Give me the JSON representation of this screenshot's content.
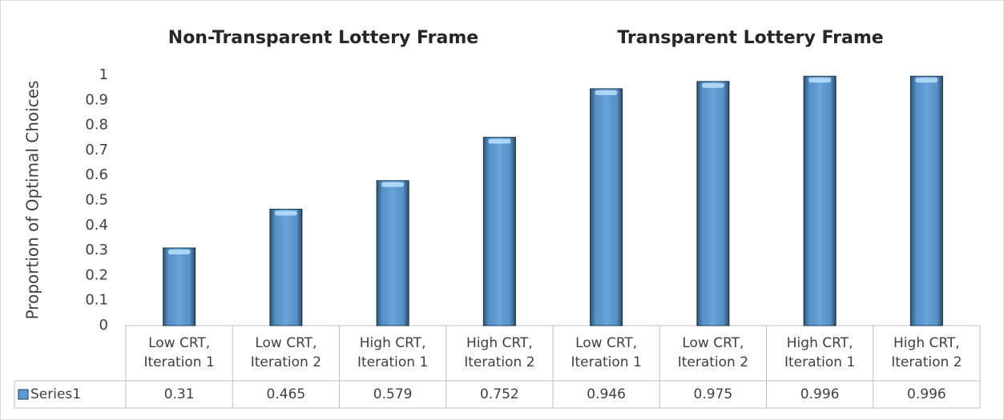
{
  "chart_data": {
    "type": "bar",
    "annotations": [
      "Non-Transparent Lottery Frame",
      "Transparent Lottery Frame"
    ],
    "y_label": "Proportion  of  Optimal  Choices",
    "categories": [
      [
        "Low CRT,",
        "Iteration 1"
      ],
      [
        "Low CRT,",
        "Iteration 2"
      ],
      [
        "High CRT,",
        "Iteration 1"
      ],
      [
        "High CRT,",
        "Iteration 2"
      ],
      [
        "Low CRT,",
        "Iteration 1"
      ],
      [
        "Low CRT,",
        "Iteration 2"
      ],
      [
        "High CRT,",
        "Iteration 1"
      ],
      [
        "High CRT,",
        "Iteration 2"
      ]
    ],
    "series": [
      {
        "name": "Series1",
        "color": "#5b9bd5",
        "values": [
          0.31,
          0.465,
          0.579,
          0.752,
          0.946,
          0.975,
          0.996,
          0.996
        ]
      }
    ],
    "ylim": [
      0,
      1
    ],
    "yticks": [
      0,
      0.1,
      0.2,
      0.3,
      0.4,
      0.5,
      0.6,
      0.7,
      0.8,
      0.9,
      1
    ],
    "grid": false
  }
}
